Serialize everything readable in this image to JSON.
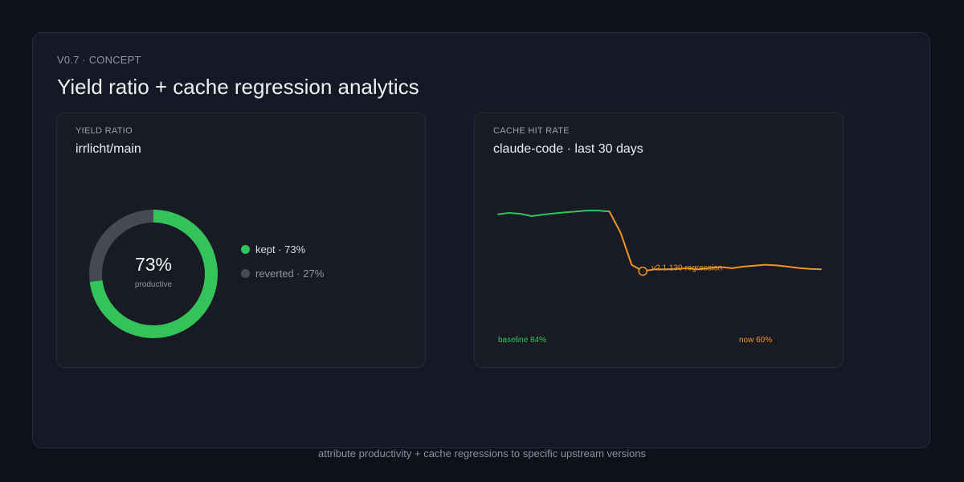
{
  "header": {
    "eyebrow": "V0.7 · CONCEPT",
    "title": "Yield ratio + cache regression analytics"
  },
  "yield_card": {
    "label": "YIELD RATIO",
    "title": "irrlicht/main",
    "center_value": "73%",
    "center_caption": "productive",
    "legend": [
      {
        "text": "kept · 73%",
        "color": "#34c35a"
      },
      {
        "text": "reverted · 27%",
        "color": "#474a55"
      }
    ]
  },
  "cache_card": {
    "label": "CACHE HIT RATE",
    "title": "claude-code · last 30 days",
    "baseline_label": "baseline 84%",
    "now_label": "now 60%",
    "annotation": "v2.1.130 regression"
  },
  "footer": {
    "text": "attribute productivity + cache regressions to specific upstream versions"
  },
  "colors": {
    "kept": "#34c35a",
    "reverted": "#474a55",
    "baseline": "#34c35a",
    "regression": "#f39321"
  },
  "chart_data": [
    {
      "type": "pie",
      "subtype": "donut",
      "title": "irrlicht/main",
      "categories": [
        "kept",
        "reverted"
      ],
      "values": [
        73,
        27
      ],
      "unit": "%"
    },
    {
      "type": "line",
      "title": "claude-code · last 30 days",
      "ylabel": "",
      "xlabel": "",
      "x": [
        1,
        2,
        3,
        4,
        5,
        6,
        7,
        8,
        9,
        10,
        11,
        12,
        13,
        14,
        15,
        16,
        17,
        18,
        19,
        20,
        21,
        22,
        23,
        24,
        25,
        26,
        27,
        28,
        29,
        30
      ],
      "y": [
        84,
        84.6,
        84.2,
        83.2,
        83.8,
        84.4,
        84.8,
        85.2,
        85.6,
        85.6,
        85.2,
        76,
        62,
        59.2,
        60,
        60,
        60.2,
        60.5,
        60,
        60.6,
        61,
        60.5,
        61.2,
        61.6,
        62,
        61.7,
        61.2,
        60.6,
        60.2,
        60
      ],
      "ylim": [
        30,
        100
      ],
      "regression_start_index": 10,
      "annotation": {
        "x": 14,
        "text": "v2.1.130 regression"
      },
      "grid": false,
      "legend": "none"
    }
  ]
}
